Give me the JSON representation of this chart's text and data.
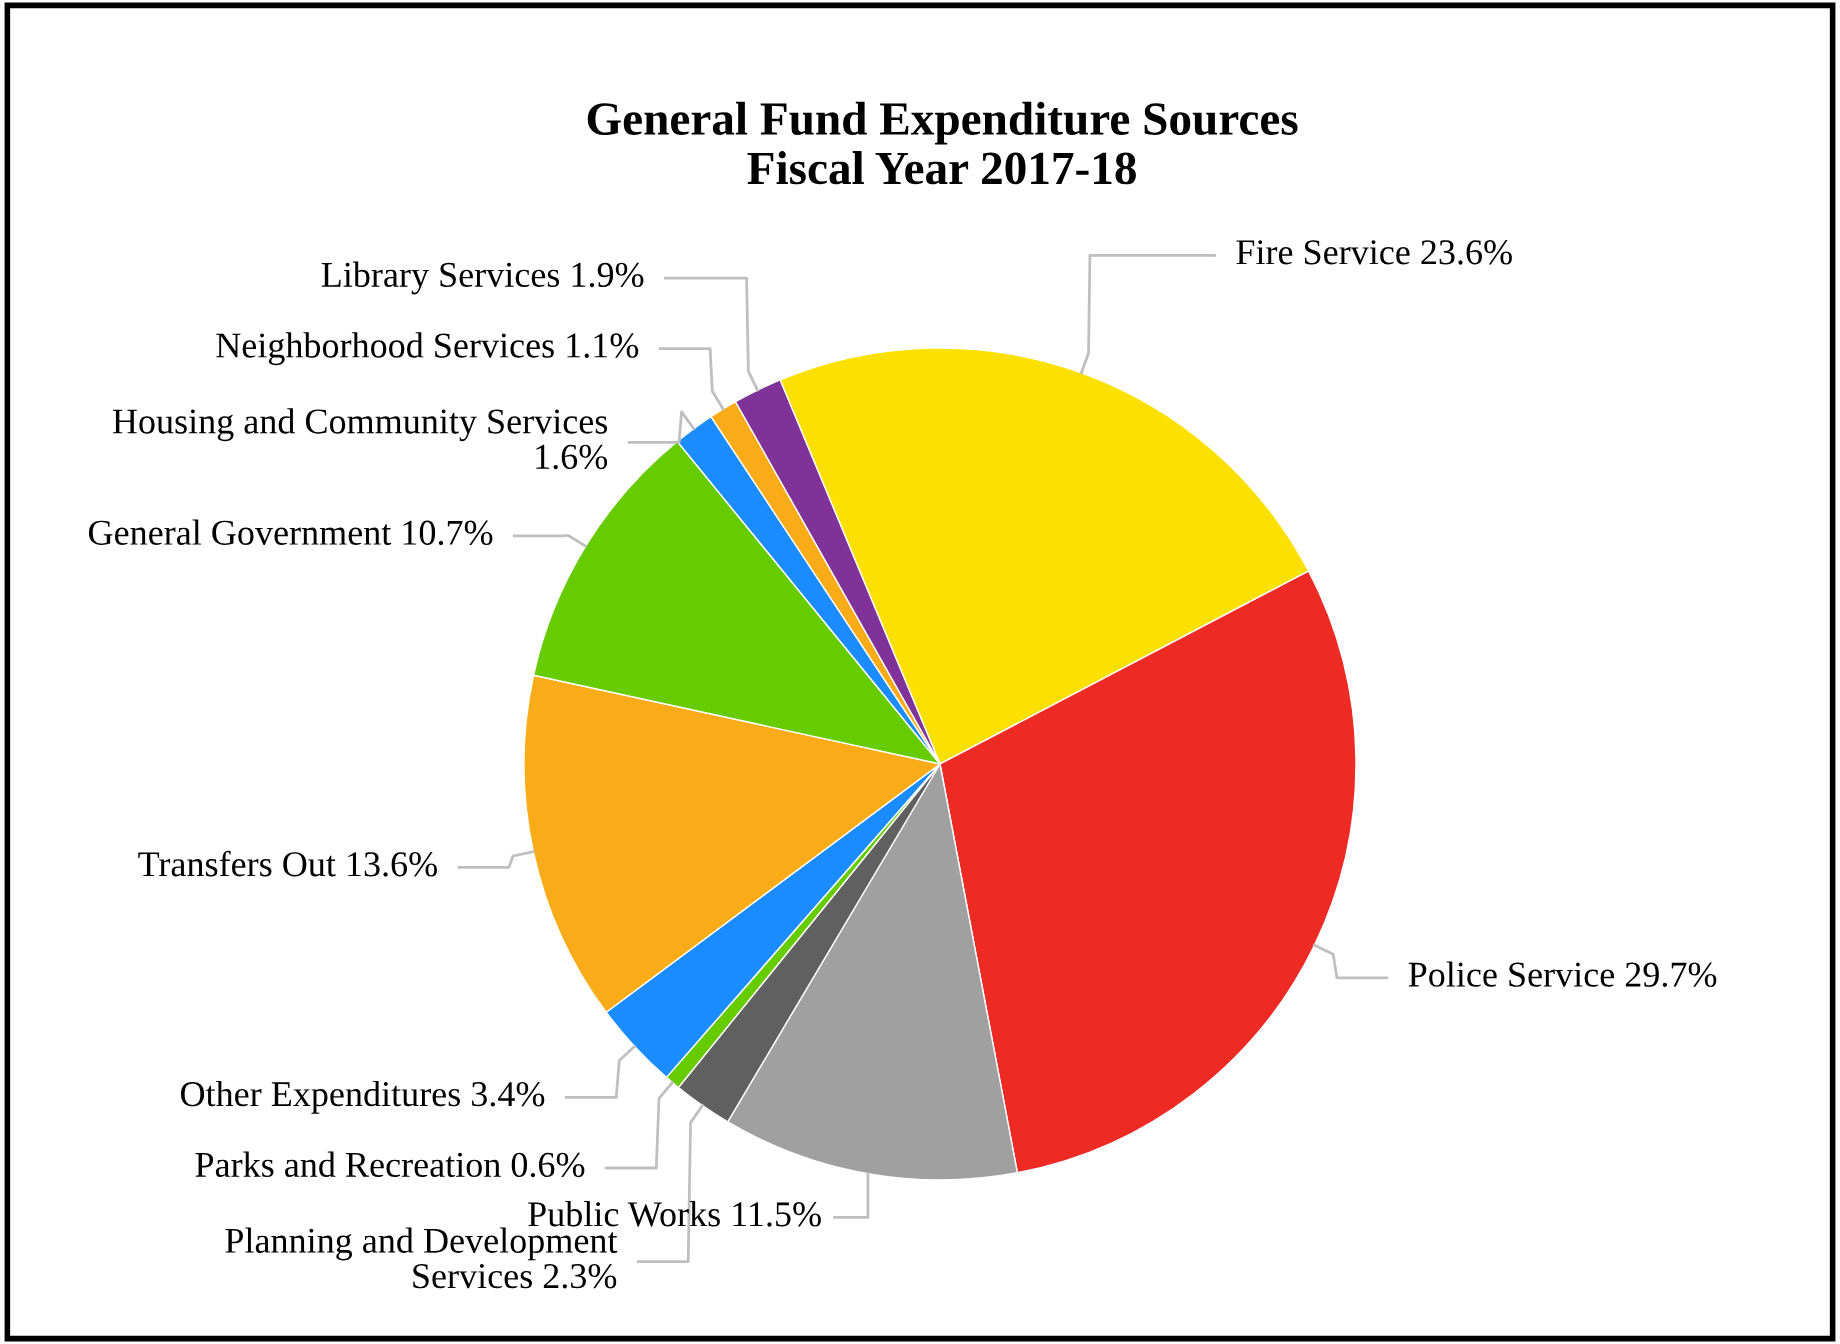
{
  "chart_data": {
    "type": "pie",
    "title": "General Fund Expenditure Sources\nFiscal Year 2017-18",
    "categories": [
      "Fire Service",
      "Police Service",
      "Public Works",
      "Planning and Development Services",
      "Parks and Recreation",
      "Other Expenditures",
      "Transfers Out",
      "General Government",
      "Housing and Community Services",
      "Neighborhood Services",
      "Library Services"
    ],
    "values": [
      23.6,
      29.7,
      11.5,
      2.3,
      0.6,
      3.4,
      13.6,
      10.7,
      1.6,
      1.1,
      1.9
    ],
    "colors": [
      "#fbe000",
      "#ee2a24",
      "#a0a0a0",
      "#606060",
      "#66cc00",
      "#1a8cff",
      "#faab18",
      "#66cc00",
      "#1a8cff",
      "#faab18",
      "#7f3399"
    ],
    "value_labels": [
      "23.6%",
      "29.7%",
      "11.5%",
      "2.3%",
      "0.6%",
      "3.4%",
      "13.6%",
      "10.7%",
      "1.6%",
      "1.1%",
      "1.9%"
    ],
    "legend": false
  }
}
